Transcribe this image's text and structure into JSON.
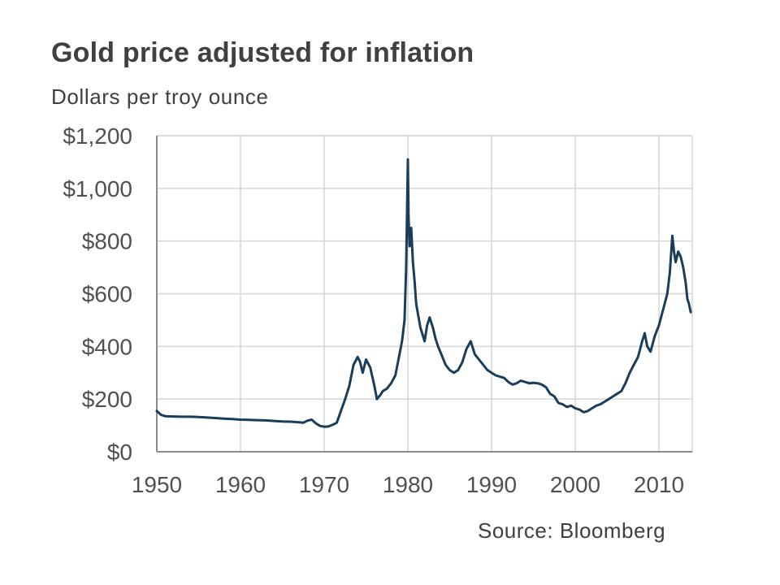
{
  "header": {
    "title": "Gold price adjusted for inflation",
    "subtitle": "Dollars per troy ounce"
  },
  "footer": {
    "source": "Source: Bloomberg"
  },
  "chart_data": {
    "type": "line",
    "title": "Gold price adjusted for inflation",
    "subtitle": "Dollars per troy ounce",
    "xlabel": "",
    "ylabel": "",
    "xlim": [
      1950,
      2013.8
    ],
    "ylim": [
      0,
      1200
    ],
    "x_ticks": [
      "1950",
      "1960",
      "1970",
      "1980",
      "1990",
      "2000",
      "2010"
    ],
    "y_ticks": [
      "$0",
      "$200",
      "$400",
      "$600",
      "$800",
      "$1,000",
      "$1,200"
    ],
    "grid": true,
    "line_color": "#1b3d5c",
    "series": [
      {
        "x": [
          1950,
          1950.5,
          1951,
          1952,
          1953,
          1954,
          1955,
          1956,
          1957,
          1958,
          1959,
          1960,
          1961,
          1962,
          1963,
          1964,
          1965,
          1966,
          1967,
          1967.5,
          1968,
          1968.5,
          1969,
          1969.5,
          1970,
          1970.5,
          1971,
          1971.5,
          1972,
          1972.5,
          1973,
          1973.5,
          1974,
          1974.3,
          1974.6,
          1975,
          1975.5,
          1976,
          1976.3,
          1976.7,
          1977,
          1977.5,
          1978,
          1978.5,
          1979,
          1979.3,
          1979.6,
          1979.8,
          1980.0,
          1980.08,
          1980.2,
          1980.4,
          1980.6,
          1980.8,
          1981,
          1981.5,
          1982,
          1982.3,
          1982.6,
          1983,
          1983.3,
          1983.6,
          1984,
          1984.5,
          1985,
          1985.5,
          1986,
          1986.5,
          1987,
          1987.5,
          1988,
          1988.5,
          1989,
          1989.5,
          1990,
          1990.5,
          1991,
          1991.5,
          1992,
          1992.5,
          1993,
          1993.5,
          1994,
          1994.5,
          1995,
          1995.5,
          1996,
          1996.5,
          1997,
          1997.5,
          1998,
          1998.5,
          1999,
          1999.5,
          2000,
          2000.5,
          2001,
          2001.5,
          2002,
          2002.5,
          2003,
          2003.5,
          2004,
          2004.5,
          2005,
          2005.5,
          2006,
          2006.5,
          2007,
          2007.5,
          2008,
          2008.3,
          2008.6,
          2009,
          2009.5,
          2010,
          2010.5,
          2011,
          2011.3,
          2011.6,
          2011.8,
          2012,
          2012.3,
          2012.6,
          2012.9,
          2013.2,
          2013.4,
          2013.6,
          2013.8
        ],
        "y": [
          155,
          140,
          135,
          134,
          133,
          133,
          132,
          130,
          128,
          126,
          124,
          122,
          121,
          120,
          119,
          117,
          115,
          114,
          112,
          110,
          118,
          122,
          108,
          98,
          95,
          96,
          102,
          110,
          155,
          200,
          250,
          330,
          360,
          340,
          300,
          350,
          320,
          250,
          200,
          215,
          230,
          240,
          260,
          290,
          370,
          420,
          500,
          700,
          1110,
          900,
          780,
          850,
          720,
          650,
          560,
          470,
          420,
          480,
          510,
          470,
          430,
          400,
          370,
          330,
          310,
          300,
          310,
          340,
          390,
          420,
          370,
          350,
          330,
          310,
          300,
          290,
          285,
          280,
          265,
          255,
          260,
          270,
          265,
          260,
          262,
          260,
          255,
          245,
          220,
          210,
          185,
          180,
          170,
          175,
          165,
          160,
          150,
          155,
          165,
          175,
          180,
          190,
          200,
          210,
          220,
          230,
          260,
          300,
          330,
          360,
          420,
          450,
          400,
          380,
          440,
          480,
          540,
          600,
          680,
          820,
          760,
          720,
          760,
          740,
          700,
          640,
          580,
          560,
          530
        ]
      }
    ]
  }
}
